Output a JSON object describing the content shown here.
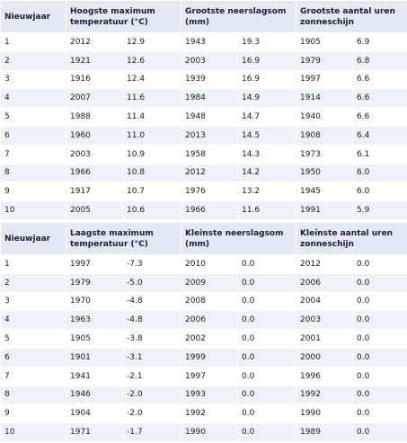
{
  "top": {
    "headers": {
      "rank": "Nieuwjaar",
      "col1": "Hoogste maximum temperatuur (°C)",
      "col2": "Grootste neerslagsom (mm)",
      "col3": "Grootste aantal uren zonneschijn"
    },
    "rows": [
      {
        "rank": "1",
        "y1": "2012",
        "v1": "12.9",
        "y2": "1943",
        "v2": "19.3",
        "y3": "1905",
        "v3": "6.9"
      },
      {
        "rank": "2",
        "y1": "1921",
        "v1": "12.6",
        "y2": "2003",
        "v2": "16.9",
        "y3": "1979",
        "v3": "6.8"
      },
      {
        "rank": "3",
        "y1": "1916",
        "v1": "12.4",
        "y2": "1939",
        "v2": "16.9",
        "y3": "1997",
        "v3": "6.6"
      },
      {
        "rank": "4",
        "y1": "2007",
        "v1": "11.6",
        "y2": "1984",
        "v2": "14.9",
        "y3": "1914",
        "v3": "6.6"
      },
      {
        "rank": "5",
        "y1": "1988",
        "v1": "11.4",
        "y2": "1948",
        "v2": "14.7",
        "y3": "1940",
        "v3": "6.6"
      },
      {
        "rank": "6",
        "y1": "1960",
        "v1": "11.0",
        "y2": "2013",
        "v2": "14.5",
        "y3": "1908",
        "v3": "6.4"
      },
      {
        "rank": "7",
        "y1": "2003",
        "v1": "10.9",
        "y2": "1958",
        "v2": "14.3",
        "y3": "1973",
        "v3": "6.1"
      },
      {
        "rank": "8",
        "y1": "1966",
        "v1": "10.8",
        "y2": "2012",
        "v2": "14.2",
        "y3": "1950",
        "v3": "6.0"
      },
      {
        "rank": "9",
        "y1": "1917",
        "v1": "10.7",
        "y2": "1976",
        "v2": "13.2",
        "y3": "1945",
        "v3": "6.0"
      },
      {
        "rank": "10",
        "y1": "2005",
        "v1": "10.6",
        "y2": "1966",
        "v2": "11.6",
        "y3": "1991",
        "v3": "5.9"
      }
    ]
  },
  "bottom": {
    "headers": {
      "rank": "Nieuwjaar",
      "col1": "Laagste maximum temperatuur (°C)",
      "col2": "Kleinste neerslagsom (mm)",
      "col3": "Kleinste aantal uren zonneschijn"
    },
    "rows": [
      {
        "rank": "1",
        "y1": "1997",
        "v1": "-7.3",
        "y2": "2010",
        "v2": "0.0",
        "y3": "2012",
        "v3": "0.0"
      },
      {
        "rank": "2",
        "y1": "1979",
        "v1": "-5.0",
        "y2": "2009",
        "v2": "0.0",
        "y3": "2006",
        "v3": "0.0"
      },
      {
        "rank": "3",
        "y1": "1970",
        "v1": "-4.8",
        "y2": "2008",
        "v2": "0.0",
        "y3": "2004",
        "v3": "0.0"
      },
      {
        "rank": "4",
        "y1": "1963",
        "v1": "-4.8",
        "y2": "2006",
        "v2": "0.0",
        "y3": "2003",
        "v3": "0.0"
      },
      {
        "rank": "5",
        "y1": "1905",
        "v1": "-3.8",
        "y2": "2002",
        "v2": "0.0",
        "y3": "2001",
        "v3": "0.0"
      },
      {
        "rank": "6",
        "y1": "1901",
        "v1": "-3.1",
        "y2": "1999",
        "v2": "0.0",
        "y3": "2000",
        "v3": "0.0"
      },
      {
        "rank": "7",
        "y1": "1941",
        "v1": "-2.1",
        "y2": "1997",
        "v2": "0.0",
        "y3": "1996",
        "v3": "0.0"
      },
      {
        "rank": "8",
        "y1": "1946",
        "v1": "-2.0",
        "y2": "1993",
        "v2": "0.0",
        "y3": "1992",
        "v3": "0.0"
      },
      {
        "rank": "9",
        "y1": "1904",
        "v1": "-2.0",
        "y2": "1992",
        "v2": "0.0",
        "y3": "1990",
        "v3": "0.0"
      },
      {
        "rank": "10",
        "y1": "1971",
        "v1": "-1.7",
        "y2": "1990",
        "v2": "0.0",
        "y3": "1989",
        "v3": "0.0"
      }
    ]
  }
}
